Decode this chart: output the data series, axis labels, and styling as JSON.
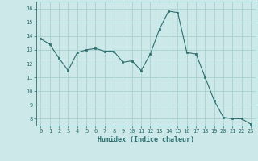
{
  "x": [
    0,
    1,
    2,
    3,
    4,
    5,
    6,
    7,
    8,
    9,
    10,
    11,
    12,
    13,
    14,
    15,
    16,
    17,
    18,
    19,
    20,
    21,
    22,
    23
  ],
  "y": [
    13.8,
    13.4,
    12.4,
    11.5,
    12.8,
    13.0,
    13.1,
    12.9,
    12.9,
    12.1,
    12.2,
    11.5,
    12.7,
    14.5,
    15.8,
    15.7,
    12.8,
    12.7,
    11.0,
    9.3,
    8.1,
    8.0,
    8.0,
    7.6
  ],
  "xlabel": "Humidex (Indice chaleur)",
  "ylim": [
    7.5,
    16.5
  ],
  "xlim": [
    -0.5,
    23.5
  ],
  "yticks": [
    8,
    9,
    10,
    11,
    12,
    13,
    14,
    15,
    16
  ],
  "xticks": [
    0,
    1,
    2,
    3,
    4,
    5,
    6,
    7,
    8,
    9,
    10,
    11,
    12,
    13,
    14,
    15,
    16,
    17,
    18,
    19,
    20,
    21,
    22,
    23
  ],
  "line_color": "#2d6e6e",
  "marker_color": "#2d6e6e",
  "bg_color": "#cce8e8",
  "grid_color": "#a8d0d0",
  "font_color": "#2d6e6e",
  "xlabel_fontsize": 6.0,
  "tick_fontsize": 5.0
}
